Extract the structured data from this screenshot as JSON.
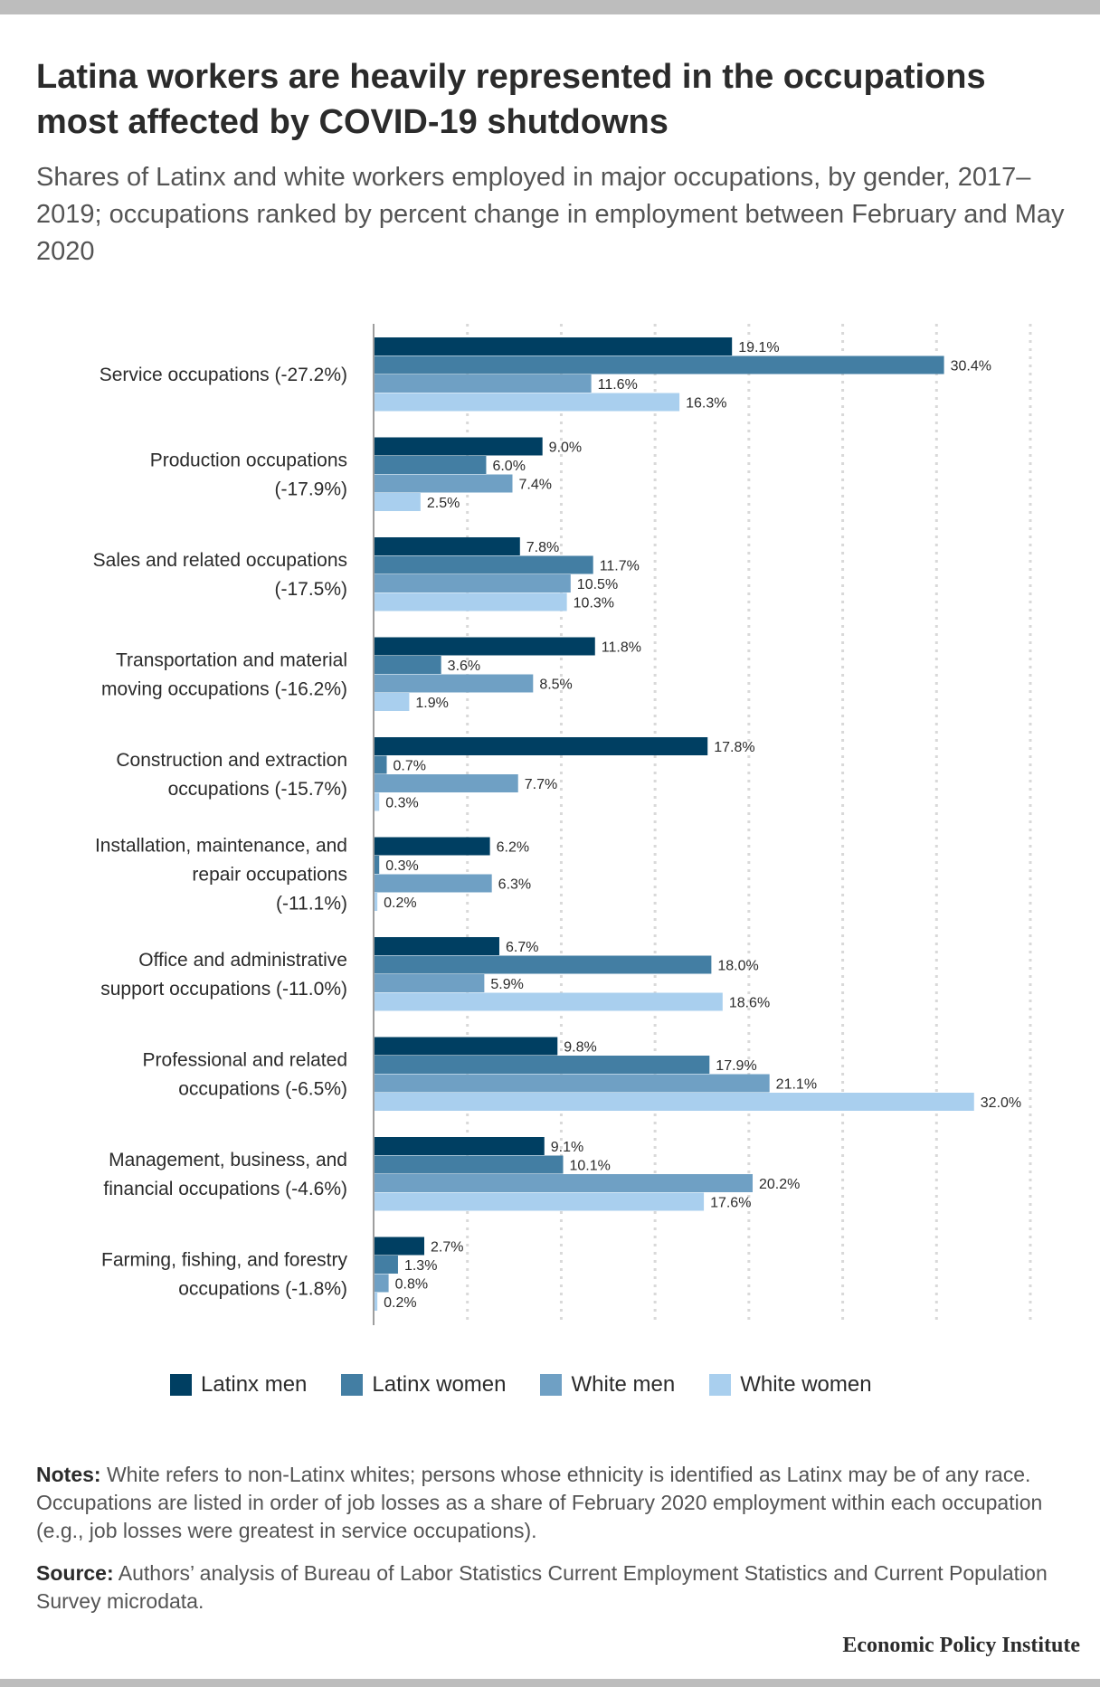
{
  "title": "Latina workers are heavily represented in the occupations most affected by COVID-19 shutdowns",
  "subtitle": "Shares of Latinx and white workers employed in major occupations, by gender, 2017–2019; occupations ranked by percent change in employment between February and May 2020",
  "chart_data": {
    "type": "bar",
    "orientation": "horizontal",
    "categories": [
      [
        "Service occupations (-27.2%)"
      ],
      [
        "Production occupations",
        "(-17.9%)"
      ],
      [
        "Sales and related occupations",
        "(-17.5%)"
      ],
      [
        "Transportation and material",
        "moving occupations (-16.2%)"
      ],
      [
        "Construction and extraction",
        "occupations (-15.7%)"
      ],
      [
        "Installation, maintenance, and",
        "repair occupations",
        "(-11.1%)"
      ],
      [
        "Office and administrative",
        "support occupations (-11.0%)"
      ],
      [
        "Professional and related",
        "occupations (-6.5%)"
      ],
      [
        "Management, business, and",
        "financial occupations (-4.6%)"
      ],
      [
        "Farming, fishing, and forestry",
        "occupations (-1.8%)"
      ]
    ],
    "series": [
      {
        "name": "Latinx men",
        "color": "#003f62",
        "values": [
          19.1,
          9.0,
          7.8,
          11.8,
          17.8,
          6.2,
          6.7,
          9.8,
          9.1,
          2.7
        ]
      },
      {
        "name": "Latinx women",
        "color": "#437ea3",
        "values": [
          30.4,
          6.0,
          11.7,
          3.6,
          0.7,
          0.3,
          18.0,
          17.9,
          10.1,
          1.3
        ]
      },
      {
        "name": "White men",
        "color": "#6fa0c4",
        "values": [
          11.6,
          7.4,
          10.5,
          8.5,
          7.7,
          6.3,
          5.9,
          21.1,
          20.2,
          0.8
        ]
      },
      {
        "name": "White women",
        "color": "#a9cfee",
        "values": [
          16.3,
          2.5,
          10.3,
          1.9,
          0.3,
          0.2,
          18.6,
          32.0,
          17.6,
          0.2
        ]
      }
    ],
    "value_format": "0.0%",
    "xlim": [
      0,
      35
    ],
    "grid": true,
    "legend_position": "bottom"
  },
  "notes": {
    "lead": "Notes:",
    "text": " White refers to non-Latinx whites; persons whose ethnicity is identified as Latinx may be of any race. Occupations are listed in order of job losses as a share of February 2020 employment within each occupation (e.g., job losses were greatest in service occupations)."
  },
  "source": {
    "lead": "Source:",
    "text": " Authors’ analysis of Bureau of Labor Statistics Current Employment Statistics and Current Population Survey microdata."
  },
  "brand": "Economic Policy Institute"
}
